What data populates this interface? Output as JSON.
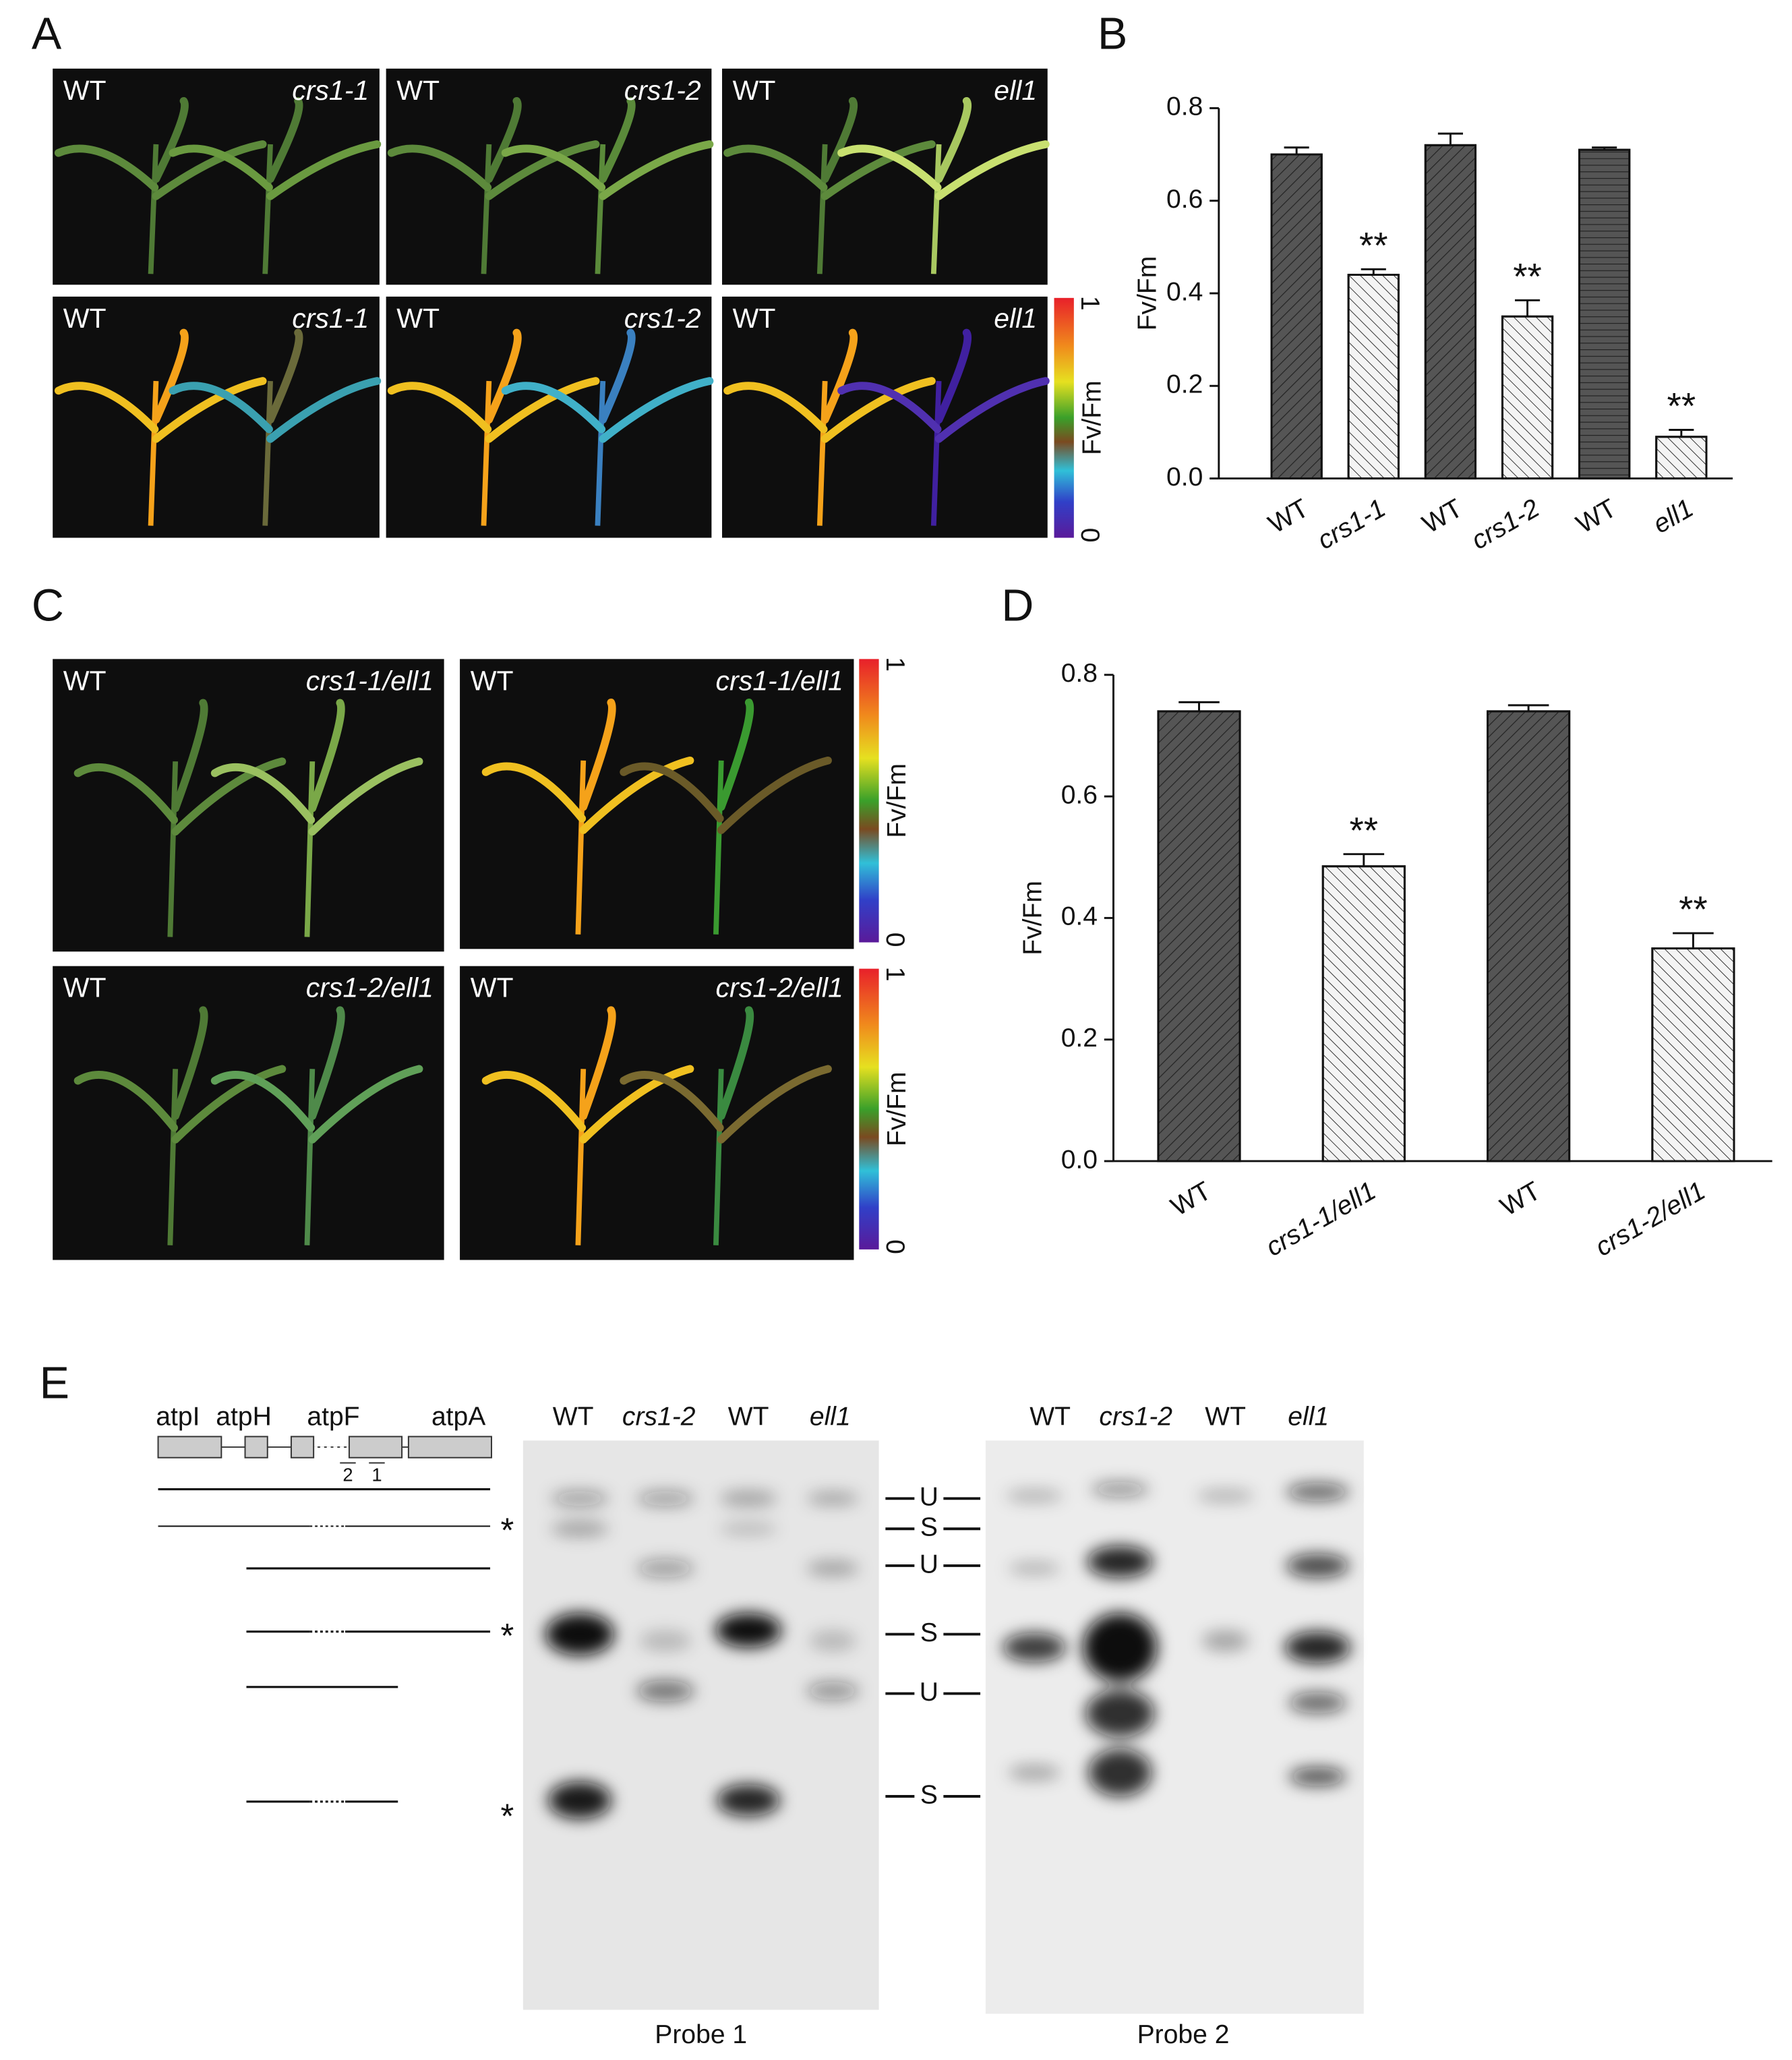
{
  "panel_letters": [
    "A",
    "B",
    "C",
    "D",
    "E"
  ],
  "panel_a": {
    "photos": [
      {
        "left": "WT",
        "right": "crs1-1"
      },
      {
        "left": "WT",
        "right": "crs1-2"
      },
      {
        "left": "WT",
        "right": "ell1"
      },
      {
        "left": "WT",
        "right": "crs1-1"
      },
      {
        "left": "WT",
        "right": "crs1-2"
      },
      {
        "left": "WT",
        "right": "ell1"
      }
    ],
    "colorbar": {
      "max": "1",
      "min": "0",
      "label": "Fv/Fm"
    }
  },
  "panel_c": {
    "photos": [
      {
        "left": "WT",
        "right": "crs1-1/ell1"
      },
      {
        "left": "WT",
        "right": "crs1-1/ell1"
      },
      {
        "left": "WT",
        "right": "crs1-2/ell1"
      },
      {
        "left": "WT",
        "right": "crs1-2/ell1"
      }
    ],
    "colorbars": [
      {
        "max": "1",
        "min": "0",
        "label": "Fv/Fm"
      },
      {
        "max": "1",
        "min": "0",
        "label": "Fv/Fm"
      }
    ]
  },
  "chart_data": [
    {
      "type": "bar",
      "ylabel": "Fv/Fm",
      "categories": [
        "WT",
        "crs1-1",
        "WT",
        "crs1-2",
        "WT",
        "ell1"
      ],
      "values": [
        0.7,
        0.44,
        0.72,
        0.35,
        0.71,
        0.09
      ],
      "errors": [
        0.015,
        0.012,
        0.025,
        0.035,
        0.005,
        0.015
      ],
      "significance": [
        null,
        "**",
        null,
        "**",
        null,
        "**"
      ],
      "colors": [
        "#555555",
        "#f4f4f4",
        "#555555",
        "#f4f4f4",
        "#555555",
        "#f4f4f4"
      ],
      "ylim": [
        0,
        0.8
      ],
      "yticks": [
        {
          "value": 0,
          "label": "0.0"
        },
        0.2,
        0.4,
        0.6,
        0.8
      ]
    },
    {
      "type": "bar",
      "ylabel": "Fv/Fm",
      "categories": [
        "WT",
        "crs1-1/ell1",
        "WT",
        "crs1-2/ell1"
      ],
      "values": [
        0.74,
        0.485,
        0.74,
        0.35
      ],
      "errors": [
        0.015,
        0.02,
        0.01,
        0.025
      ],
      "significance": [
        null,
        "**",
        null,
        "**"
      ],
      "colors": [
        "#555555",
        "#f4f4f4",
        "#555555",
        "#f4f4f4"
      ],
      "ylim": [
        0,
        0.8
      ],
      "yticks": [
        {
          "value": 0,
          "label": "0.0"
        },
        0.2,
        0.4,
        0.6,
        0.8
      ]
    }
  ],
  "panel_e": {
    "genes": [
      "atpI",
      "atpH",
      "atpF",
      "atpA"
    ],
    "probe_positions": [
      "2",
      "1"
    ],
    "asterisks": [
      "*",
      "*",
      "*"
    ],
    "blots": [
      {
        "lanes": [
          "WT",
          "crs1-2",
          "WT",
          "ell1"
        ],
        "probe": "Probe 1"
      },
      {
        "lanes": [
          "WT",
          "crs1-2",
          "WT",
          "ell1"
        ],
        "probe": "Probe 2"
      }
    ],
    "markers": [
      "U",
      "S",
      "U",
      "S",
      "U",
      "S"
    ]
  }
}
